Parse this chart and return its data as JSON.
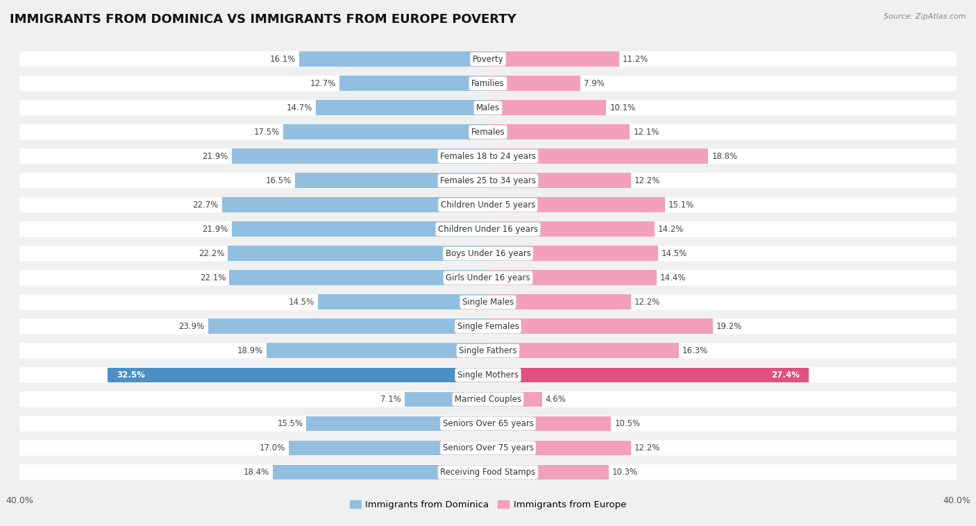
{
  "title": "IMMIGRANTS FROM DOMINICA VS IMMIGRANTS FROM EUROPE POVERTY",
  "source": "Source: ZipAtlas.com",
  "categories": [
    "Poverty",
    "Families",
    "Males",
    "Females",
    "Females 18 to 24 years",
    "Females 25 to 34 years",
    "Children Under 5 years",
    "Children Under 16 years",
    "Boys Under 16 years",
    "Girls Under 16 years",
    "Single Males",
    "Single Females",
    "Single Fathers",
    "Single Mothers",
    "Married Couples",
    "Seniors Over 65 years",
    "Seniors Over 75 years",
    "Receiving Food Stamps"
  ],
  "dominica_values": [
    16.1,
    12.7,
    14.7,
    17.5,
    21.9,
    16.5,
    22.7,
    21.9,
    22.2,
    22.1,
    14.5,
    23.9,
    18.9,
    32.5,
    7.1,
    15.5,
    17.0,
    18.4
  ],
  "europe_values": [
    11.2,
    7.9,
    10.1,
    12.1,
    18.8,
    12.2,
    15.1,
    14.2,
    14.5,
    14.4,
    12.2,
    19.2,
    16.3,
    27.4,
    4.6,
    10.5,
    12.2,
    10.3
  ],
  "dominica_color": "#92BFE0",
  "europe_color": "#F2A0BC",
  "dominica_label": "Immigrants from Dominica",
  "europe_label": "Immigrants from Europe",
  "bar_height": 0.62,
  "xlim": 40.0,
  "bg_color": "#f0f0f0",
  "row_bg_color": "#ffffff",
  "title_fontsize": 13,
  "label_fontsize": 8.5,
  "value_fontsize": 8.5,
  "special_inside": [
    13
  ],
  "dominica_special_color": "#4a90c4",
  "europe_special_color": "#e05080"
}
